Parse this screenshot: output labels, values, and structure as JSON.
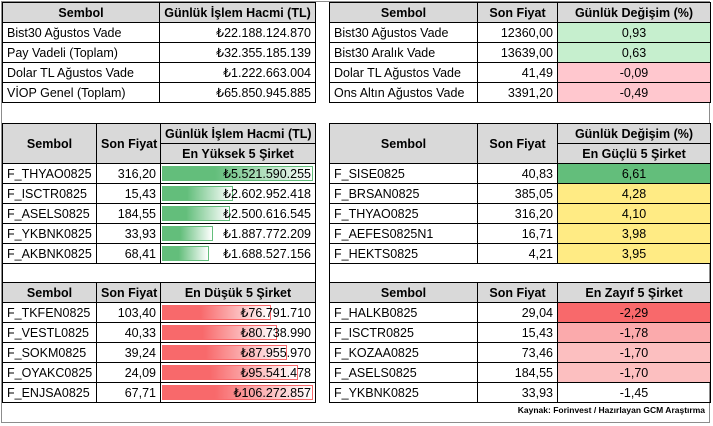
{
  "t1": {
    "h_sym": "Sembol",
    "h_vol": "Günlük İşlem Hacmi (TL)",
    "rows": [
      {
        "sym": "Bist30 Ağustos Vade",
        "vol": "₺22.188.124.870"
      },
      {
        "sym": "Pay Vadeli (Toplam)",
        "vol": "₺32.355.185.139"
      },
      {
        "sym": "Dolar TL Ağustos Vade",
        "vol": "₺1.222.663.004"
      },
      {
        "sym": "VİOP Genel (Toplam)",
        "vol": "₺65.850.945.885"
      }
    ]
  },
  "t2": {
    "h_sym": "Sembol",
    "h_price": "Son Fiyat",
    "h_chg": "Günlük Değişim (%)",
    "rows": [
      {
        "sym": "Bist30 Ağustos Vade",
        "price": "12360,00",
        "chg": "0,93",
        "pos": true
      },
      {
        "sym": "Bist30 Aralık Vade",
        "price": "13639,00",
        "chg": "0,63",
        "pos": true
      },
      {
        "sym": "Dolar TL Ağustos Vade",
        "price": "41,49",
        "chg": "-0,09",
        "pos": false
      },
      {
        "sym": "Ons Altın Ağustos Vade",
        "price": "3391,20",
        "chg": "-0,49",
        "pos": false
      }
    ]
  },
  "t3": {
    "h_sym": "Sembol",
    "h_price": "Son Fiyat",
    "h_vol": "Günlük İşlem Hacmi (TL)",
    "sub_top": "En Yüksek 5 Şirket",
    "sub_bottom": "En Düşük 5 Şirket",
    "top": [
      {
        "sym": "F_THYAO0825",
        "price": "316,20",
        "vol": "₺5.521.590.255",
        "level": 1.0
      },
      {
        "sym": "F_ISCTR0825",
        "price": "15,43",
        "vol": "₺2.602.952.418",
        "level": 0.47
      },
      {
        "sym": "F_ASELS0825",
        "price": "184,55",
        "vol": "₺2.500.616.545",
        "level": 0.45
      },
      {
        "sym": "F_YKBNK0825",
        "price": "33,93",
        "vol": "₺1.887.772.209",
        "level": 0.34
      },
      {
        "sym": "F_AKBNK0825",
        "price": "68,41",
        "vol": "₺1.688.527.156",
        "level": 0.31
      }
    ],
    "bottom": [
      {
        "sym": "F_TKFEN0825",
        "price": "103,40",
        "vol": "₺76.791.710",
        "level": 0.72
      },
      {
        "sym": "F_VESTL0825",
        "price": "40,33",
        "vol": "₺80.738.990",
        "level": 0.76
      },
      {
        "sym": "F_SOKM0825",
        "price": "39,24",
        "vol": "₺87.955.970",
        "level": 0.83
      },
      {
        "sym": "F_OYAKC0825",
        "price": "24,09",
        "vol": "₺95.541.478",
        "level": 0.9
      },
      {
        "sym": "F_ENJSA0825",
        "price": "67,71",
        "vol": "₺106.272.857",
        "level": 1.0
      }
    ]
  },
  "t4": {
    "h_sym": "Sembol",
    "h_price": "Son Fiyat",
    "h_chg": "Günlük Değişim (%)",
    "sub_top": "En Güçlü 5 Şirket",
    "sub_bottom": "En Zayıf 5 Şirket",
    "top": [
      {
        "sym": "F_SISE0825",
        "price": "40,83",
        "chg": "6,61"
      },
      {
        "sym": "F_BRSAN0825",
        "price": "385,05",
        "chg": "4,28"
      },
      {
        "sym": "F_THYAO0825",
        "price": "316,20",
        "chg": "4,10"
      },
      {
        "sym": "F_AEFES0825N1",
        "price": "16,71",
        "chg": "3,98"
      },
      {
        "sym": "F_HEKTS0825",
        "price": "4,21",
        "chg": "3,95"
      }
    ],
    "bottom": [
      {
        "sym": "F_HALKB0825",
        "price": "29,04",
        "chg": "-2,29"
      },
      {
        "sym": "F_ISCTR0825",
        "price": "15,43",
        "chg": "-1,78"
      },
      {
        "sym": "F_KOZAA0825",
        "price": "73,46",
        "chg": "-1,70"
      },
      {
        "sym": "F_ASELS0825",
        "price": "184,55",
        "chg": "-1,70"
      },
      {
        "sym": "F_YKBNK0825",
        "price": "33,93",
        "chg": "-1,45"
      }
    ]
  },
  "colors": {
    "pos": "#c6efce",
    "neg": "#ffc7ce",
    "bar_green": "#63be7b",
    "bar_red": "#f8696b"
  },
  "source": "Kaynak: Forinvest / Hazırlayan GCM Araştırma"
}
